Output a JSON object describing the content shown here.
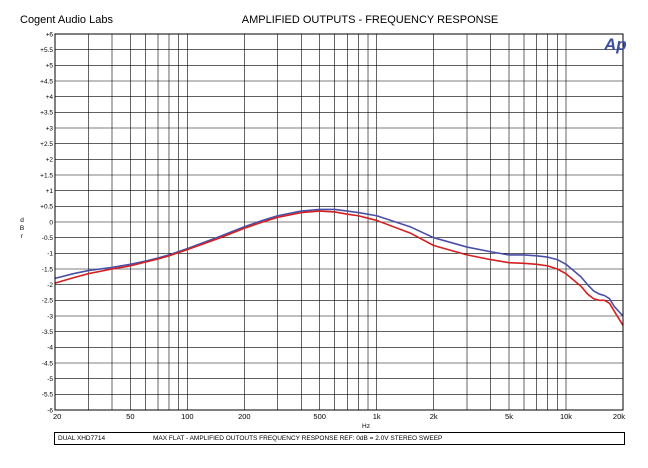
{
  "header": {
    "company": "Cogent Audio Labs",
    "title": "AMPLIFIED OUTPUTS - FREQUENCY RESPONSE",
    "logo": "Ap"
  },
  "footer": {
    "left": "DUAL XHD7714",
    "right": "MAX FLAT  -  AMPLIFIED OUTOUTS FREQUENCY RESPONSE  REF: 0dB = 2.0V  STEREO SWEEP"
  },
  "colors": {
    "series_blue": "#4a4fa6",
    "series_red": "#d42020",
    "grid": "#000000",
    "logo": "#3e4f9c"
  },
  "chart_data": {
    "type": "line",
    "title": "AMPLIFIED OUTPUTS - FREQUENCY RESPONSE",
    "xlabel": "Hz",
    "ylabel": "d B r",
    "xscale": "log",
    "xlim": [
      20,
      20000
    ],
    "ylim": [
      -6,
      6
    ],
    "grid": true,
    "x_ticks": [
      20,
      50,
      100,
      200,
      500,
      1000,
      2000,
      5000,
      10000,
      20000
    ],
    "x_tick_labels": [
      "20",
      "50",
      "100",
      "200",
      "500",
      "1k",
      "2k",
      "5k",
      "10k",
      "20k"
    ],
    "y_ticks": [
      6,
      5.5,
      5,
      4.5,
      4,
      3.5,
      3,
      2.5,
      2,
      1.5,
      1,
      0.5,
      0,
      -0.5,
      -1,
      -1.5,
      -2,
      -2.5,
      -3,
      -3.5,
      -4,
      -4.5,
      -5,
      -5.5,
      -6
    ],
    "y_tick_labels": [
      "+6",
      "+5.5",
      "+5",
      "+4.5",
      "+4",
      "+3.5",
      "+3",
      "+2.5",
      "+2",
      "+1.5",
      "+1",
      "+0.5",
      "0",
      "-0.5",
      "-1",
      "-1.5",
      "-2",
      "-2.5",
      "-3",
      "-3.5",
      "-4",
      "-4.5",
      "-5",
      "-5.5",
      "-6"
    ],
    "series": [
      {
        "color": "#4a4fa6",
        "x": [
          20,
          25,
          30,
          40,
          50,
          60,
          70,
          80,
          100,
          150,
          200,
          250,
          300,
          400,
          500,
          600,
          700,
          800,
          1000,
          1500,
          2000,
          3000,
          4000,
          5000,
          6000,
          7000,
          8000,
          9000,
          10000,
          12000,
          13000,
          14000,
          15000,
          16000,
          17000,
          18000,
          20000
        ],
        "y": [
          -1.8,
          -1.65,
          -1.55,
          -1.45,
          -1.35,
          -1.25,
          -1.15,
          -1.05,
          -0.85,
          -0.45,
          -0.15,
          0.05,
          0.2,
          0.35,
          0.4,
          0.4,
          0.35,
          0.3,
          0.2,
          -0.15,
          -0.5,
          -0.8,
          -0.95,
          -1.05,
          -1.05,
          -1.08,
          -1.12,
          -1.2,
          -1.35,
          -1.75,
          -2.0,
          -2.2,
          -2.3,
          -2.35,
          -2.45,
          -2.7,
          -3.0
        ]
      },
      {
        "color": "#d42020",
        "x": [
          20,
          25,
          30,
          40,
          50,
          60,
          70,
          80,
          100,
          150,
          200,
          250,
          300,
          400,
          500,
          600,
          700,
          800,
          1000,
          1500,
          2000,
          3000,
          4000,
          5000,
          6000,
          7000,
          8000,
          9000,
          10000,
          12000,
          13000,
          14000,
          15000,
          16000,
          17000,
          18000,
          20000
        ],
        "y": [
          -1.95,
          -1.78,
          -1.65,
          -1.5,
          -1.4,
          -1.28,
          -1.18,
          -1.08,
          -0.88,
          -0.5,
          -0.2,
          0.0,
          0.15,
          0.3,
          0.35,
          0.32,
          0.25,
          0.2,
          0.05,
          -0.35,
          -0.75,
          -1.05,
          -1.2,
          -1.3,
          -1.32,
          -1.35,
          -1.4,
          -1.5,
          -1.65,
          -2.05,
          -2.3,
          -2.45,
          -2.5,
          -2.5,
          -2.6,
          -2.85,
          -3.3
        ]
      }
    ]
  }
}
